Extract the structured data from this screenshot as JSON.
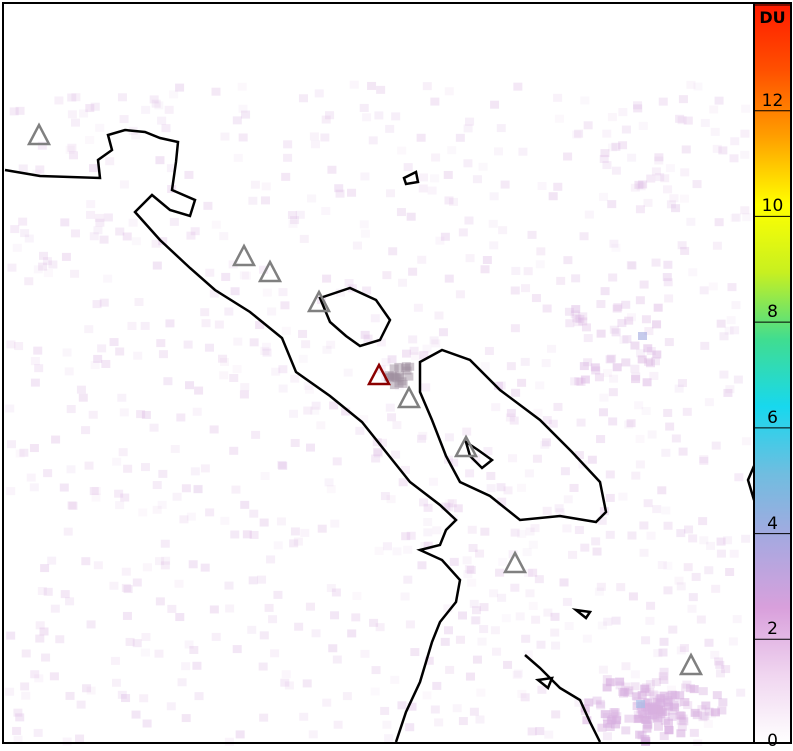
{
  "colorbar": {
    "unit": "DU",
    "ticks": [
      "0",
      "2",
      "4",
      "6",
      "8",
      "10",
      "12"
    ],
    "range": [
      0,
      14
    ],
    "colors": [
      "#ffffff",
      "#f0d6f0",
      "#d9a0dc",
      "#a8a8e0",
      "#70bde0",
      "#18d8ee",
      "#40dd90",
      "#c8f020",
      "#ffff00",
      "#ffa000",
      "#ff5000",
      "#ff1a00"
    ]
  },
  "volcano_markers": {
    "active_color": "#8b0000",
    "inactive_color": "#808080",
    "icon": "triangle-icon",
    "active_count": 1,
    "inactive_count": 8
  },
  "plume_color": "#d8b0e0"
}
